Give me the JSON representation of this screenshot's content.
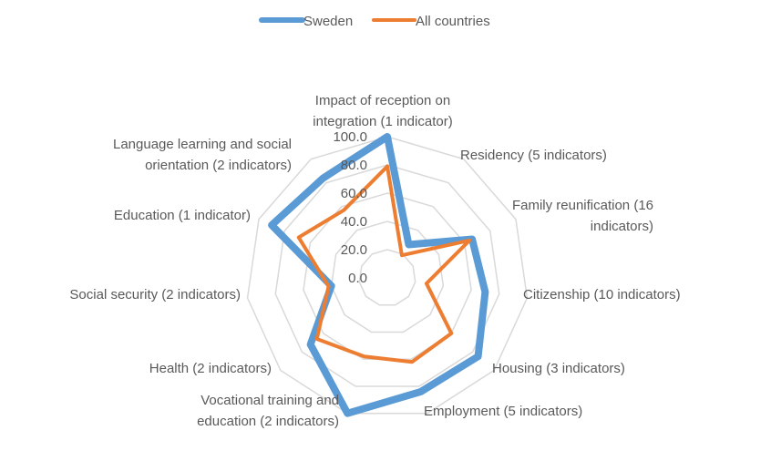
{
  "chart_data": {
    "type": "radar",
    "categories": [
      "Impact of reception on integration (1 indicator)",
      "Residency (5 indicators)",
      "Family reunification (16 indicators)",
      "Citizenship (10 indicators)",
      "Housing (3 indicators)",
      "Employment (5 indicators)",
      "Vocational training and education (2 indicators)",
      "Health (2 indicators)",
      "Social security (2 indicators)",
      "Education (1 indicator)",
      "Language learning and social orientation (2 indicators)"
    ],
    "series": [
      {
        "name": "Sweden",
        "color": "#5b9bd5",
        "values": [
          100,
          28,
          66,
          70,
          85,
          84,
          100,
          72,
          40,
          90,
          84
        ]
      },
      {
        "name": "All countries",
        "color": "#ed7d31",
        "values": [
          79,
          19,
          64,
          28,
          60,
          62,
          58,
          66,
          42,
          69,
          57
        ]
      }
    ],
    "ticks": [
      "0.0",
      "20.0",
      "40.0",
      "60.0",
      "80.0",
      "100.0"
    ],
    "rlim": [
      0,
      100
    ],
    "grid": true,
    "legend": "top-center"
  }
}
